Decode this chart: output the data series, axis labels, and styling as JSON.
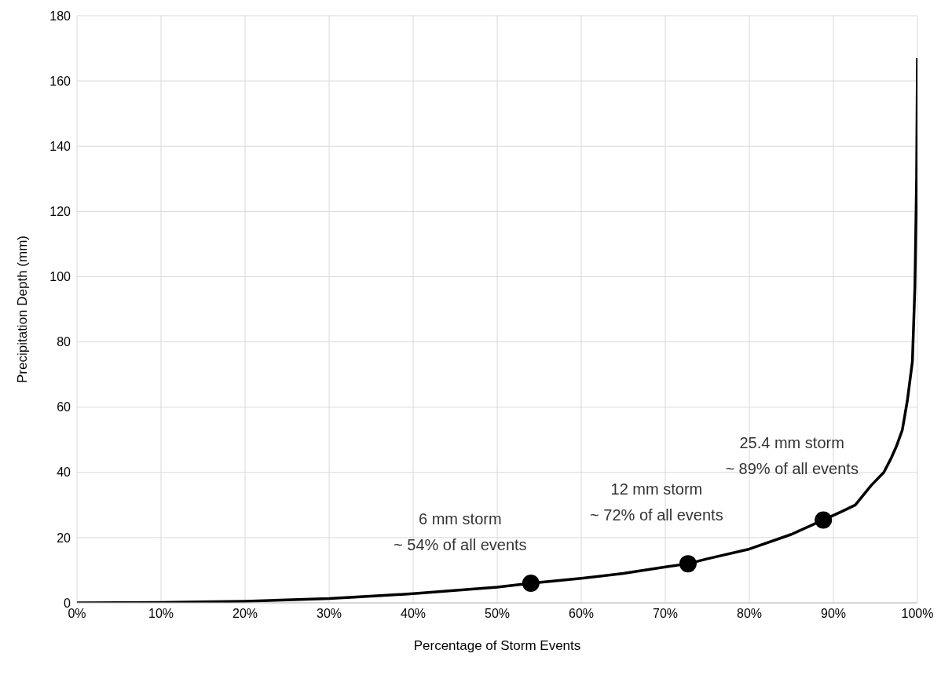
{
  "chart_data": {
    "type": "line",
    "xlabel": "Percentage of Storm Events",
    "ylabel": "Precipitation Depth (mm)",
    "series": [
      {
        "type": "line",
        "color": "#000000",
        "marker": "none",
        "x": [
          0,
          10,
          20,
          30,
          40,
          50,
          54,
          60,
          65,
          70,
          72.7,
          75,
          80,
          85,
          88.8,
          91,
          92.6,
          94.5,
          96,
          96.9,
          97.5,
          98.2,
          98.8,
          99.4,
          99.7,
          99.9,
          100
        ],
        "values": [
          0,
          0.1,
          0.5,
          1.3,
          2.8,
          4.8,
          6,
          7.5,
          9,
          11,
          12,
          13.5,
          16.5,
          21,
          25.4,
          28,
          30,
          36,
          40,
          44.5,
          48,
          53,
          62,
          74,
          97,
          130,
          167
        ]
      },
      {
        "type": "scatter",
        "color": "#000000",
        "marker": "circle",
        "x": [
          54,
          72.7,
          88.8
        ],
        "values": [
          6,
          12,
          25.4
        ]
      }
    ],
    "annotations": [
      {
        "text": "6 mm storm\n~ 54% of all events",
        "x": 54,
        "y": 6
      },
      {
        "text": "12 mm storm\n~ 72% of all events",
        "x": 72.7,
        "y": 12
      },
      {
        "text": "25.4 mm storm\n~ 89% of all events",
        "x": 88.8,
        "y": 25.4
      }
    ],
    "xlim": [
      0,
      100
    ],
    "xticks": [
      {
        "value": 0,
        "label": "0%"
      },
      {
        "value": 10,
        "label": "10%"
      },
      {
        "value": 20,
        "label": "20%"
      },
      {
        "value": 30,
        "label": "30%"
      },
      {
        "value": 40,
        "label": "40%"
      },
      {
        "value": 50,
        "label": "50%"
      },
      {
        "value": 60,
        "label": "60%"
      },
      {
        "value": 70,
        "label": "70%"
      },
      {
        "value": 80,
        "label": "80%"
      },
      {
        "value": 90,
        "label": "90%"
      },
      {
        "value": 100,
        "label": "100%"
      }
    ],
    "ylim": [
      0,
      180
    ],
    "yticks": [
      0,
      20,
      40,
      60,
      80,
      100,
      120,
      140,
      160,
      180
    ],
    "grid": true
  }
}
